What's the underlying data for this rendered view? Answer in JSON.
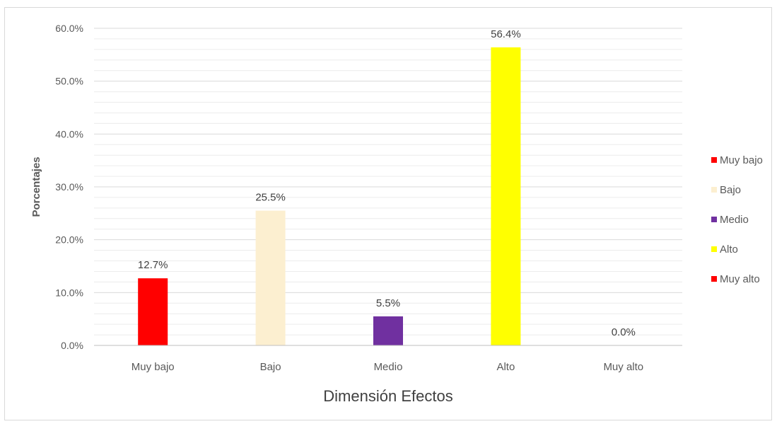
{
  "chart_data": {
    "type": "bar",
    "categories": [
      "Muy bajo",
      "Bajo",
      "Medio",
      "Alto",
      "Muy alto"
    ],
    "values": [
      12.7,
      25.5,
      5.5,
      56.4,
      0.0
    ],
    "data_labels": [
      "12.7%",
      "25.5%",
      "5.5%",
      "56.4%",
      "0.0%"
    ],
    "colors": [
      "#ff0000",
      "#fcefd0",
      "#7030a0",
      "#ffff00",
      "#ff0000"
    ],
    "xlabel": "Dimensión Efectos",
    "ylabel": "Porcentajes",
    "ylim": [
      0,
      60
    ],
    "yticks": [
      "0.0%",
      "10.0%",
      "20.0%",
      "30.0%",
      "40.0%",
      "50.0%",
      "60.0%"
    ],
    "grid": true,
    "legend_position": "right",
    "legend": [
      "Muy bajo",
      "Bajo",
      "Medio",
      "Alto",
      "Muy alto"
    ]
  }
}
